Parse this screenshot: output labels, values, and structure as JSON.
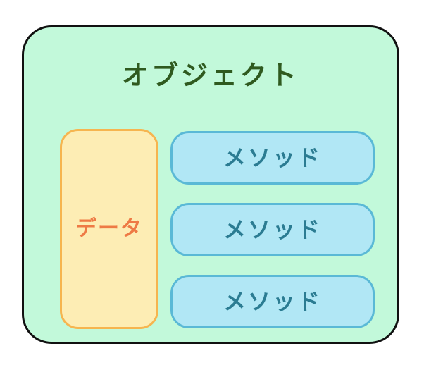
{
  "diagram": {
    "object_label": "オブジェクト",
    "data_label": "データ",
    "methods": [
      {
        "label": "メソッド"
      },
      {
        "label": "メソッド"
      },
      {
        "label": "メソッド"
      }
    ]
  },
  "colors": {
    "object_fill": "#c2f9da",
    "object_border": "#111111",
    "object_title": "#2f5a1f",
    "data_fill": "#fdedb4",
    "data_border": "#f6b54f",
    "data_text": "#ee7a45",
    "method_fill": "#b1e7f5",
    "method_border": "#5ab9d6",
    "method_text": "#2b7c92"
  }
}
